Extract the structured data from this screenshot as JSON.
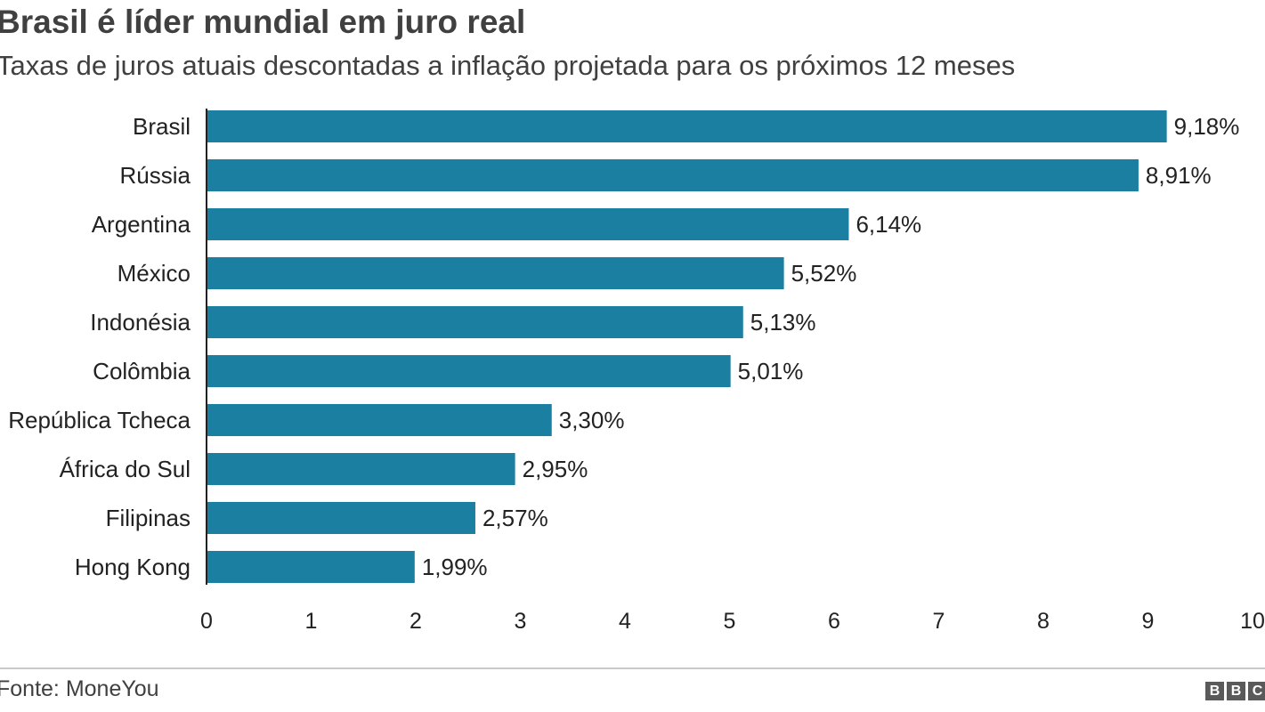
{
  "header": {
    "title": "Brasil é líder mundial em juro real",
    "subtitle": "Taxas de juros atuais descontadas a inflação projetada para os próximos 12 meses"
  },
  "footer": {
    "source": "Fonte: MoneYou",
    "logo": [
      "B",
      "B",
      "C"
    ]
  },
  "colors": {
    "bar": "#1a7fa1",
    "axis": "#222222"
  },
  "chart_data": {
    "type": "bar",
    "orientation": "horizontal",
    "title": "Brasil é líder mundial em juro real",
    "subtitle": "Taxas de juros atuais descontadas a inflação projetada para os próximos 12 meses",
    "xlabel": "",
    "ylabel": "",
    "xlim": [
      0,
      10
    ],
    "grid": false,
    "categories": [
      "Brasil",
      "Rússia",
      "Argentina",
      "México",
      "Indonésia",
      "Colômbia",
      "República Tcheca",
      "África do Sul",
      "Filipinas",
      "Hong Kong"
    ],
    "values": [
      9.18,
      8.91,
      6.14,
      5.52,
      5.13,
      5.01,
      3.3,
      2.95,
      2.57,
      1.99
    ],
    "value_labels": [
      "9,18%",
      "8,91%",
      "6,14%",
      "5,52%",
      "5,13%",
      "5,01%",
      "3,30%",
      "2,95%",
      "2,57%",
      "1,99%"
    ],
    "ticks": [
      0,
      1,
      2,
      3,
      4,
      5,
      6,
      7,
      8,
      9,
      10
    ],
    "tick_labels": [
      "0",
      "1",
      "2",
      "3",
      "4",
      "5",
      "6",
      "7",
      "8",
      "9",
      "10"
    ],
    "source": "Fonte: MoneYou"
  }
}
